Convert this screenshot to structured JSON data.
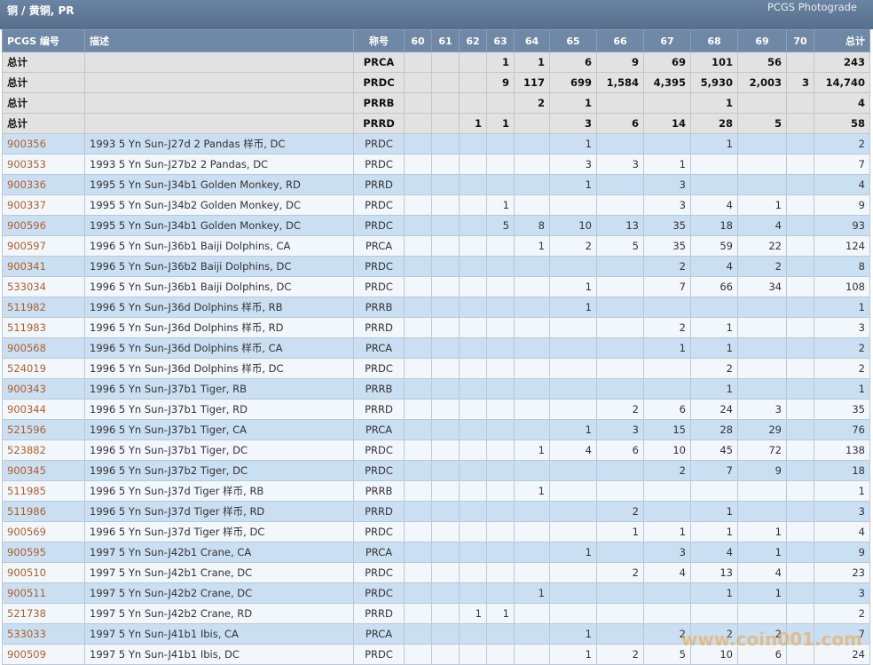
{
  "header": {
    "title": "铜 / 黄铜, PR",
    "source": "PCGS Photograde"
  },
  "table": {
    "columns": [
      "PCGS 编号",
      "描述",
      "称号",
      "60",
      "61",
      "62",
      "63",
      "64",
      "65",
      "66",
      "67",
      "68",
      "69",
      "70",
      "总计"
    ],
    "totals": [
      [
        "总计",
        null,
        "PRCA",
        null,
        null,
        null,
        "1",
        "1",
        "6",
        "9",
        "69",
        "101",
        "56",
        null,
        "243"
      ],
      [
        "总计",
        null,
        "PRDC",
        null,
        null,
        null,
        "9",
        "117",
        "699",
        "1,584",
        "4,395",
        "5,930",
        "2,003",
        "3",
        "14,740"
      ],
      [
        "总计",
        null,
        "PRRB",
        null,
        null,
        null,
        null,
        "2",
        "1",
        null,
        null,
        "1",
        null,
        null,
        "4"
      ],
      [
        "总计",
        null,
        "PRRD",
        null,
        null,
        "1",
        "1",
        null,
        "3",
        "6",
        "14",
        "28",
        "5",
        null,
        "58"
      ]
    ],
    "rows": [
      [
        "900356",
        "1993 5 Yn Sun-J27d 2 Pandas 样币, DC",
        "PRDC",
        null,
        null,
        null,
        null,
        null,
        "1",
        null,
        null,
        "1",
        null,
        null,
        "2"
      ],
      [
        "900353",
        "1993 5 Yn Sun-J27b2 2 Pandas, DC",
        "PRDC",
        null,
        null,
        null,
        null,
        null,
        "3",
        "3",
        "1",
        null,
        null,
        null,
        "7"
      ],
      [
        "900336",
        "1995 5 Yn Sun-J34b1 Golden Monkey, RD",
        "PRRD",
        null,
        null,
        null,
        null,
        null,
        "1",
        null,
        "3",
        null,
        null,
        null,
        "4"
      ],
      [
        "900337",
        "1995 5 Yn Sun-J34b2 Golden Monkey, DC",
        "PRDC",
        null,
        null,
        null,
        "1",
        null,
        null,
        null,
        "3",
        "4",
        "1",
        null,
        "9"
      ],
      [
        "900596",
        "1995 5 Yn Sun-J34b1 Golden Monkey, DC",
        "PRDC",
        null,
        null,
        null,
        "5",
        "8",
        "10",
        "13",
        "35",
        "18",
        "4",
        null,
        "93"
      ],
      [
        "900597",
        "1996 5 Yn Sun-J36b1 Baiji Dolphins, CA",
        "PRCA",
        null,
        null,
        null,
        null,
        "1",
        "2",
        "5",
        "35",
        "59",
        "22",
        null,
        "124"
      ],
      [
        "900341",
        "1996 5 Yn Sun-J36b2 Baiji Dolphins, DC",
        "PRDC",
        null,
        null,
        null,
        null,
        null,
        null,
        null,
        "2",
        "4",
        "2",
        null,
        "8"
      ],
      [
        "533034",
        "1996 5 Yn Sun-J36b1 Baiji Dolphins, DC",
        "PRDC",
        null,
        null,
        null,
        null,
        null,
        "1",
        null,
        "7",
        "66",
        "34",
        null,
        "108"
      ],
      [
        "511982",
        "1996 5 Yn Sun-J36d Dolphins 样币, RB",
        "PRRB",
        null,
        null,
        null,
        null,
        null,
        "1",
        null,
        null,
        null,
        null,
        null,
        "1"
      ],
      [
        "511983",
        "1996 5 Yn Sun-J36d Dolphins 样币, RD",
        "PRRD",
        null,
        null,
        null,
        null,
        null,
        null,
        null,
        "2",
        "1",
        null,
        null,
        "3"
      ],
      [
        "900568",
        "1996 5 Yn Sun-J36d Dolphins 样币, CA",
        "PRCA",
        null,
        null,
        null,
        null,
        null,
        null,
        null,
        "1",
        "1",
        null,
        null,
        "2"
      ],
      [
        "524019",
        "1996 5 Yn Sun-J36d Dolphins 样币, DC",
        "PRDC",
        null,
        null,
        null,
        null,
        null,
        null,
        null,
        null,
        "2",
        null,
        null,
        "2"
      ],
      [
        "900343",
        "1996 5 Yn Sun-J37b1 Tiger, RB",
        "PRRB",
        null,
        null,
        null,
        null,
        null,
        null,
        null,
        null,
        "1",
        null,
        null,
        "1"
      ],
      [
        "900344",
        "1996 5 Yn Sun-J37b1 Tiger, RD",
        "PRRD",
        null,
        null,
        null,
        null,
        null,
        null,
        "2",
        "6",
        "24",
        "3",
        null,
        "35"
      ],
      [
        "521596",
        "1996 5 Yn Sun-J37b1 Tiger, CA",
        "PRCA",
        null,
        null,
        null,
        null,
        null,
        "1",
        "3",
        "15",
        "28",
        "29",
        null,
        "76"
      ],
      [
        "523882",
        "1996 5 Yn Sun-J37b1 Tiger, DC",
        "PRDC",
        null,
        null,
        null,
        null,
        "1",
        "4",
        "6",
        "10",
        "45",
        "72",
        null,
        "138"
      ],
      [
        "900345",
        "1996 5 Yn Sun-J37b2 Tiger, DC",
        "PRDC",
        null,
        null,
        null,
        null,
        null,
        null,
        null,
        "2",
        "7",
        "9",
        null,
        "18"
      ],
      [
        "511985",
        "1996 5 Yn Sun-J37d Tiger 样币, RB",
        "PRRB",
        null,
        null,
        null,
        null,
        "1",
        null,
        null,
        null,
        null,
        null,
        null,
        "1"
      ],
      [
        "511986",
        "1996 5 Yn Sun-J37d Tiger 样币, RD",
        "PRRD",
        null,
        null,
        null,
        null,
        null,
        null,
        "2",
        null,
        "1",
        null,
        null,
        "3"
      ],
      [
        "900569",
        "1996 5 Yn Sun-J37d Tiger 样币, DC",
        "PRDC",
        null,
        null,
        null,
        null,
        null,
        null,
        "1",
        "1",
        "1",
        "1",
        null,
        "4"
      ],
      [
        "900595",
        "1997 5 Yn Sun-J42b1 Crane, CA",
        "PRCA",
        null,
        null,
        null,
        null,
        null,
        "1",
        null,
        "3",
        "4",
        "1",
        null,
        "9"
      ],
      [
        "900510",
        "1997 5 Yn Sun-J42b1 Crane, DC",
        "PRDC",
        null,
        null,
        null,
        null,
        null,
        null,
        "2",
        "4",
        "13",
        "4",
        null,
        "23"
      ],
      [
        "900511",
        "1997 5 Yn Sun-J42b2 Crane, DC",
        "PRDC",
        null,
        null,
        null,
        null,
        "1",
        null,
        null,
        null,
        "1",
        "1",
        null,
        "3"
      ],
      [
        "521738",
        "1997 5 Yn Sun-J42b2 Crane, RD",
        "PRRD",
        null,
        null,
        "1",
        "1",
        null,
        null,
        null,
        null,
        null,
        null,
        null,
        "2"
      ],
      [
        "533033",
        "1997 5 Yn Sun-J41b1 Ibis, CA",
        "PRCA",
        null,
        null,
        null,
        null,
        null,
        "1",
        null,
        "2",
        "2",
        "2",
        null,
        "7"
      ],
      [
        "900509",
        "1997 5 Yn Sun-J41b1 Ibis, DC",
        "PRDC",
        null,
        null,
        null,
        null,
        null,
        "1",
        "2",
        "5",
        "10",
        "6",
        null,
        "24"
      ]
    ]
  },
  "watermark": "www.coin001.com"
}
